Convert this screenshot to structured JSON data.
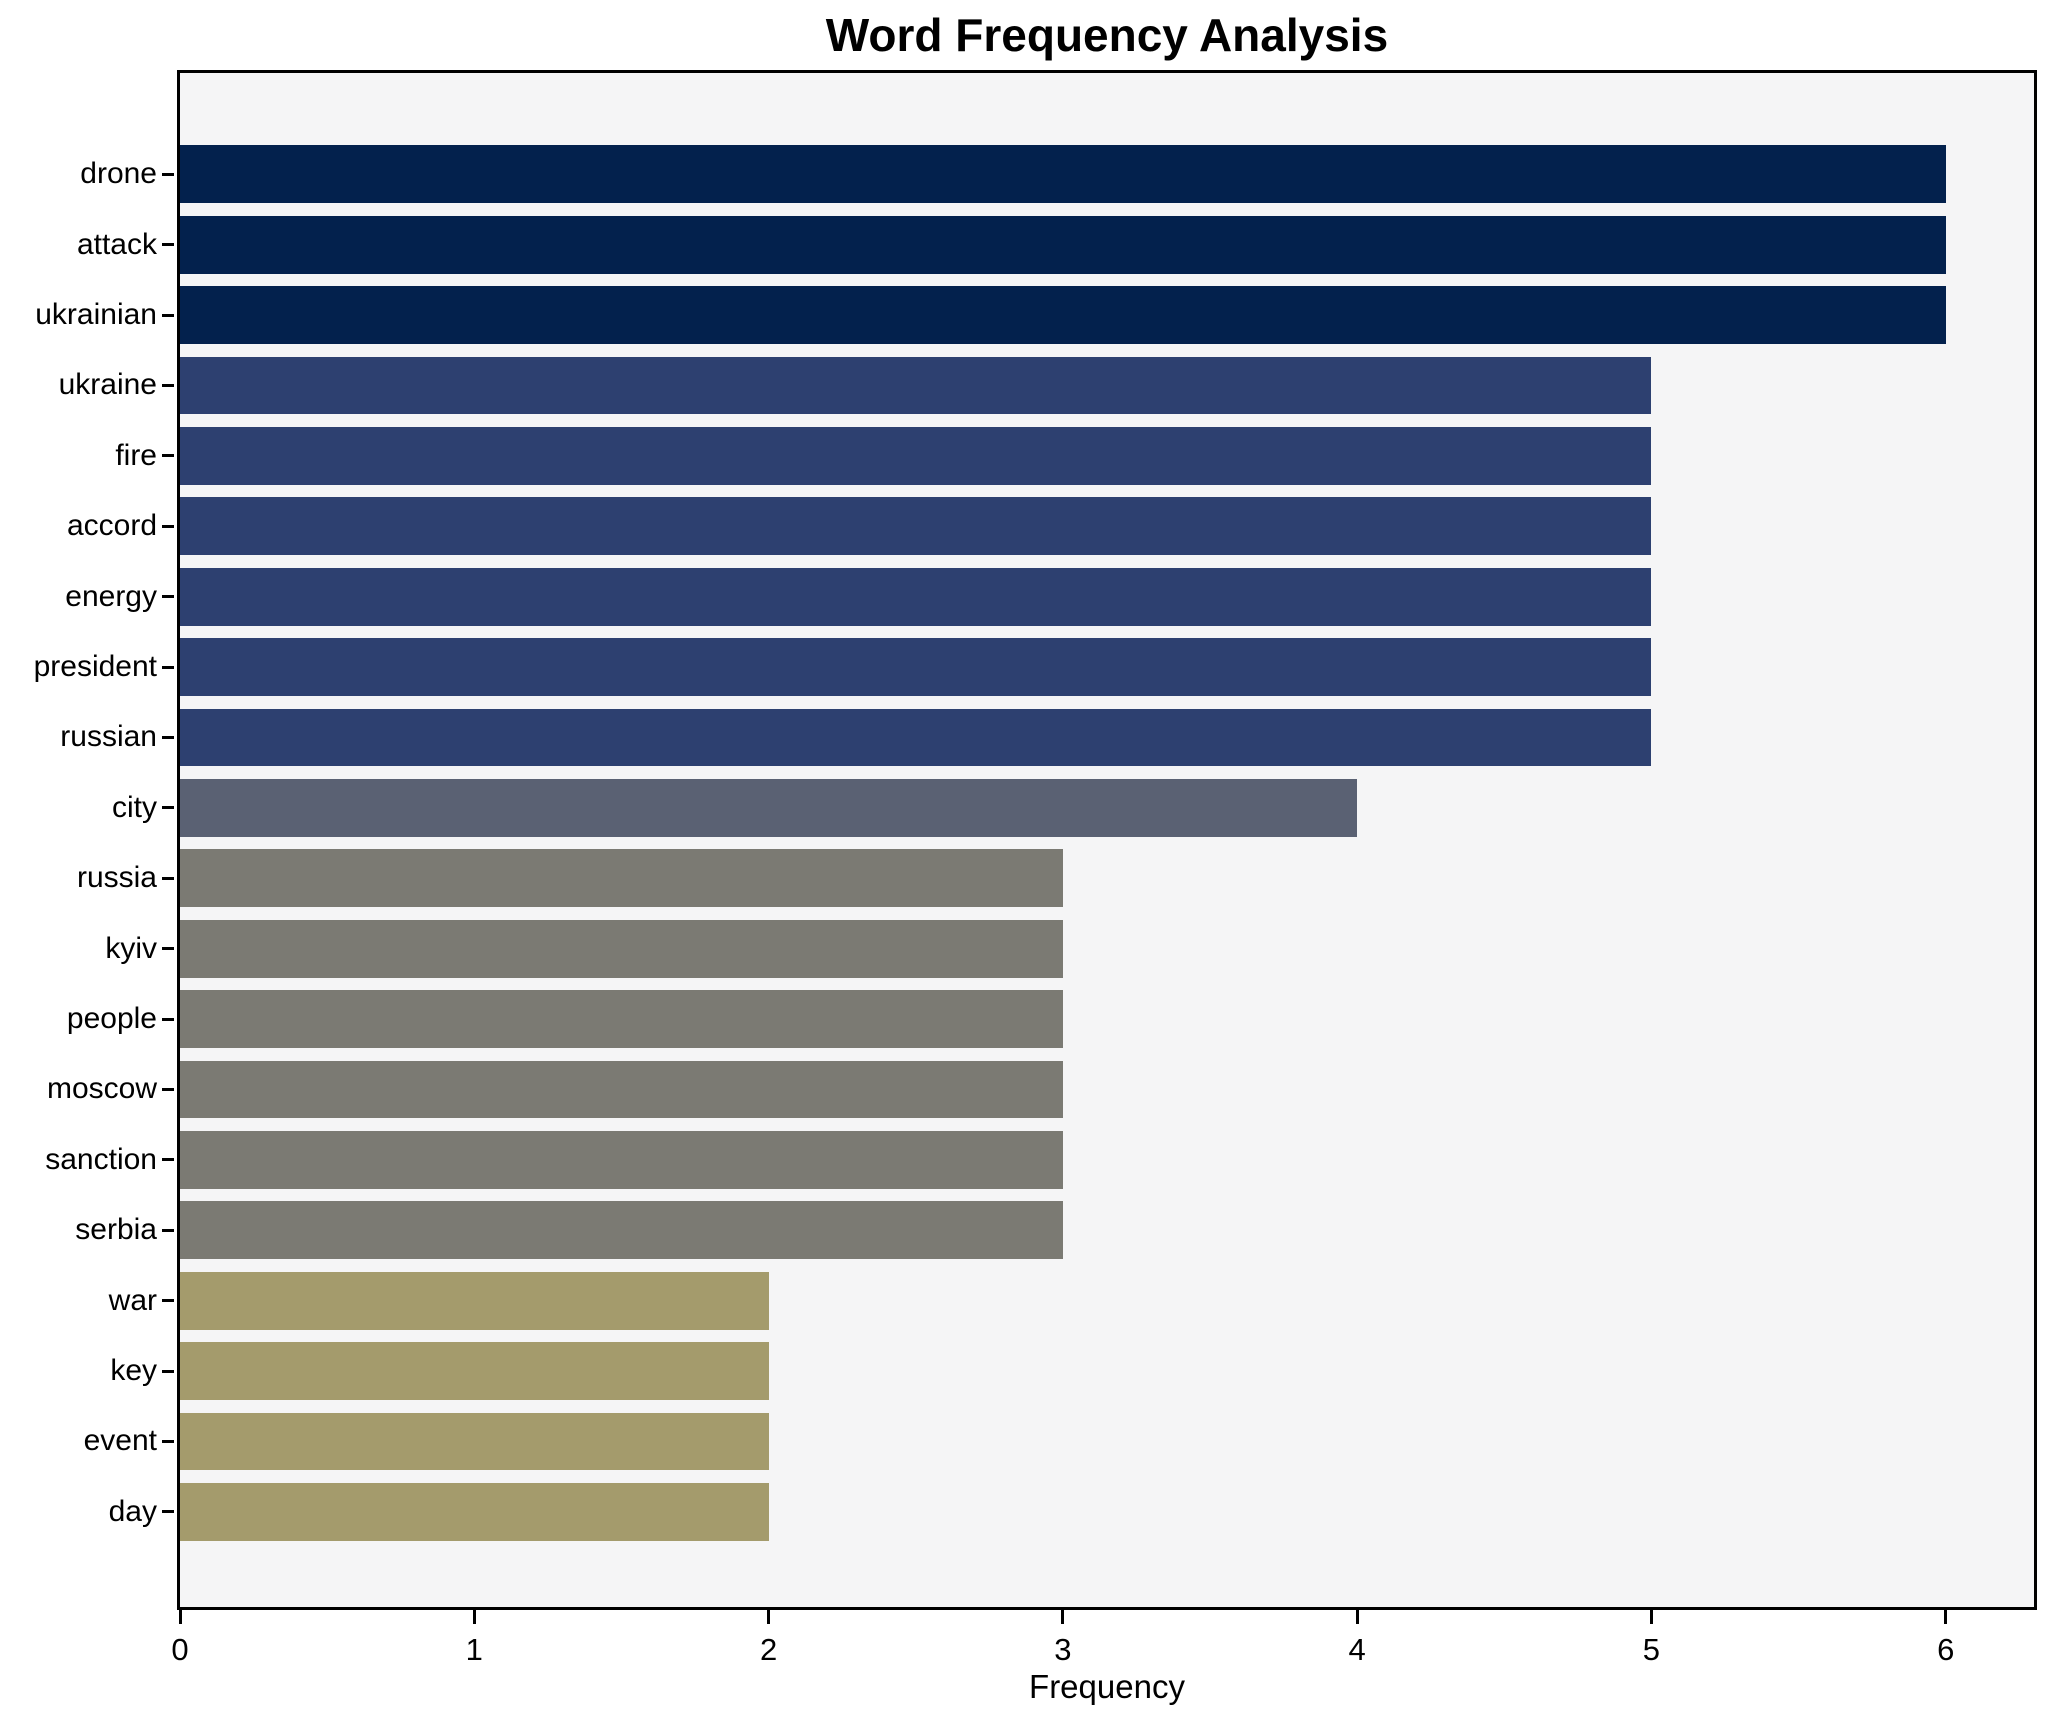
{
  "title": "Word Frequency Analysis",
  "xlabel": "Frequency",
  "chart_data": {
    "type": "bar",
    "orientation": "horizontal",
    "title": "Word Frequency Analysis",
    "xlabel": "Frequency",
    "ylabel": "",
    "grid": false,
    "legend": false,
    "plot_background": "#f5f5f6",
    "figure_background": "#ffffff",
    "xlim": [
      0,
      6.3
    ],
    "xticks": [
      0,
      1,
      2,
      3,
      4,
      5,
      6
    ],
    "categories": [
      "drone",
      "attack",
      "ukrainian",
      "ukraine",
      "fire",
      "accord",
      "energy",
      "president",
      "russian",
      "city",
      "russia",
      "kyiv",
      "people",
      "moscow",
      "sanction",
      "serbia",
      "war",
      "key",
      "event",
      "day"
    ],
    "values": [
      6,
      6,
      6,
      5,
      5,
      5,
      5,
      5,
      5,
      4,
      3,
      3,
      3,
      3,
      3,
      3,
      2,
      2,
      2,
      2
    ],
    "bar_colors": [
      "#03214d",
      "#03214d",
      "#03214d",
      "#2d4070",
      "#2d4070",
      "#2d4070",
      "#2d4070",
      "#2d4070",
      "#2d4070",
      "#5a6173",
      "#7b7a73",
      "#7b7a73",
      "#7b7a73",
      "#7b7a73",
      "#7b7a73",
      "#7b7a73",
      "#a49b6c",
      "#a49b6c",
      "#a49b6c",
      "#a49b6c"
    ],
    "value_color_map": {
      "6": "#03214d",
      "5": "#2d4070",
      "4": "#5a6173",
      "3": "#7b7a73",
      "2": "#a49b6c"
    }
  }
}
